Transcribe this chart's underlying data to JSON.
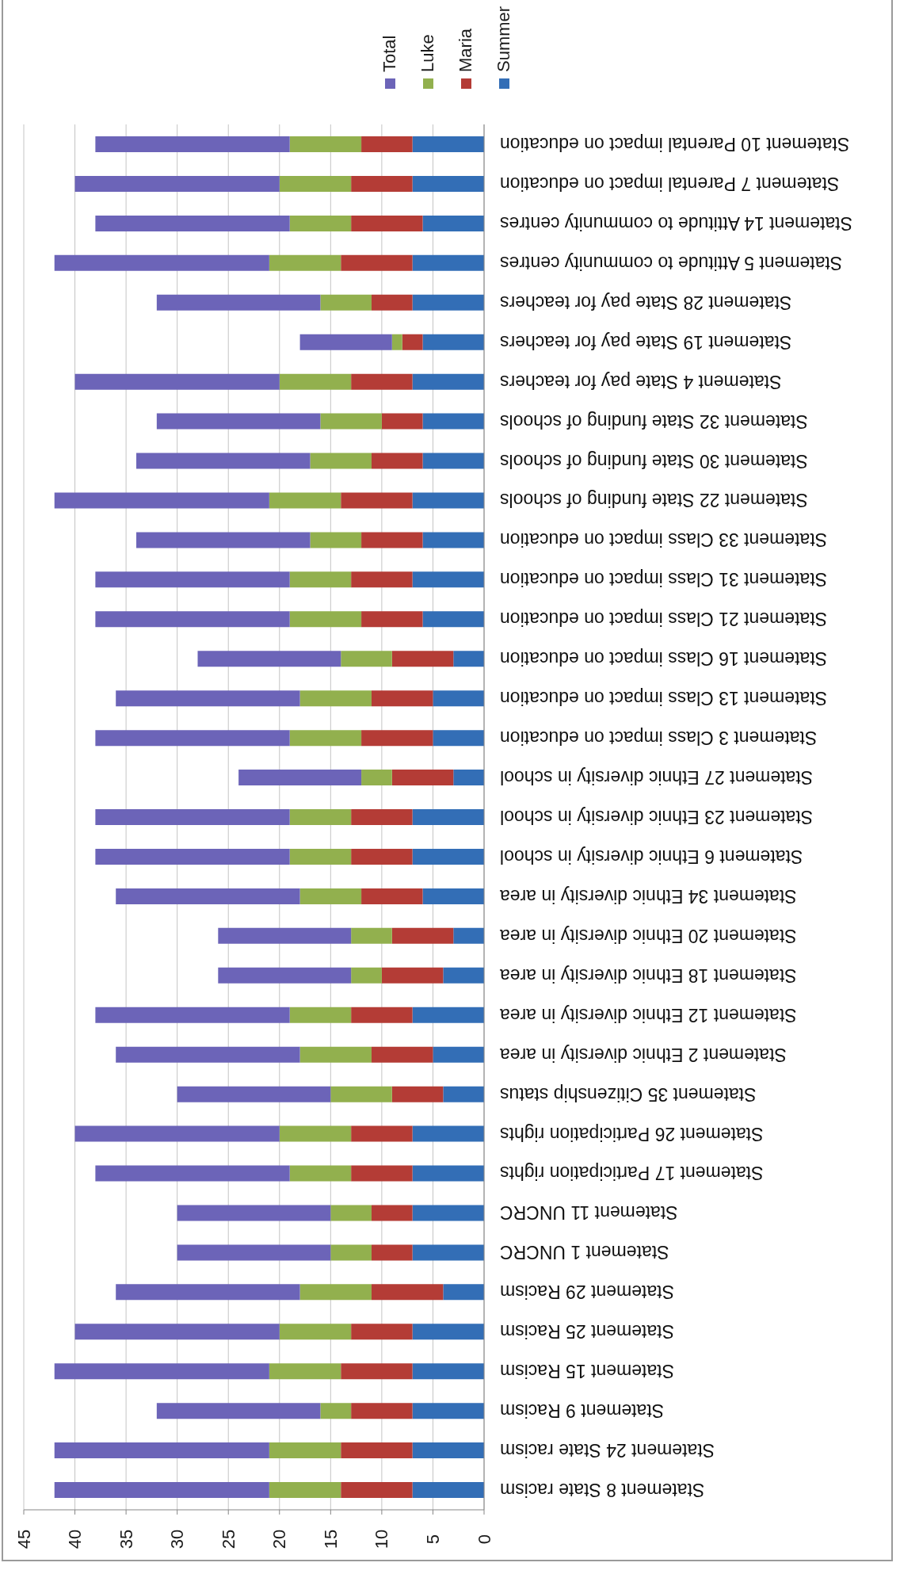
{
  "chart_data": {
    "type": "bar",
    "orientation": "horizontal",
    "stacked": true,
    "categories": [
      "Statement 10 Parental impact on education",
      "Statement 7 Parental impact on education",
      "Statement 14 Attitude to community centres",
      "Statement 5 Attitude to community centres",
      "Statement 28 State pay for teachers",
      "Statement 19 State pay for teachers",
      "Statement 4 State pay for teachers",
      "Statement 32 State funding of schools",
      "Statement 30 State funding of schools",
      "Statement 22 State funding of schools",
      "Statement 33 Class impact on education",
      "Statement 31 Class impact on education",
      "Statement 21 Class impact on education",
      "Statement 16 Class impact on education",
      "Statement 13 Class impact on education",
      "Statement 3 Class impact on education",
      "Statement 27 Ethnic diversity in school",
      "Statement 23 Ethnic diversity in school",
      "Statement 6 Ethnic diversity in school",
      "Statement 34 Ethnic diversity in area",
      "Statement 20 Ethnic diversity in area",
      "Statement 18 Ethnic diversity in area",
      "Statement 12 Ethnic diversity in area",
      "Statement 2 Ethnic diversity in area",
      "Statement 35 Citizenship status",
      "Statement 26 Participation rights",
      "Statement 17 Participation rights",
      "Statement 11 UNCRC",
      "Statement 1 UNCRC",
      "Statement 29 Racism",
      "Statement 25 Racism",
      "Statement 15 Racism",
      "Statement 9 Racism",
      "Statement 24 State racism",
      "Statement 8 State racism"
    ],
    "series": [
      {
        "name": "Summer",
        "color": "#336eb6",
        "values": [
          7,
          7,
          6,
          7,
          7,
          6,
          7,
          6,
          6,
          7,
          6,
          7,
          6,
          3,
          5,
          5,
          3,
          7,
          7,
          6,
          3,
          4,
          7,
          5,
          4,
          7,
          7,
          7,
          7,
          4,
          7,
          7,
          7,
          7,
          7
        ]
      },
      {
        "name": "Maria",
        "color": "#b43c36",
        "values": [
          5,
          6,
          7,
          7,
          4,
          2,
          6,
          4,
          5,
          7,
          6,
          6,
          6,
          6,
          6,
          7,
          6,
          6,
          6,
          6,
          6,
          6,
          6,
          6,
          5,
          6,
          6,
          4,
          4,
          7,
          6,
          7,
          6,
          7,
          7
        ]
      },
      {
        "name": "Luke",
        "color": "#92b04e",
        "values": [
          7,
          7,
          6,
          7,
          5,
          1,
          7,
          6,
          6,
          7,
          5,
          6,
          7,
          5,
          7,
          7,
          3,
          6,
          6,
          6,
          4,
          3,
          6,
          7,
          6,
          7,
          6,
          4,
          4,
          7,
          7,
          7,
          3,
          7,
          7
        ]
      },
      {
        "name": "Total",
        "color": "#6c64b8",
        "values": [
          19,
          20,
          19,
          21,
          16,
          9,
          20,
          16,
          17,
          21,
          17,
          19,
          19,
          14,
          18,
          19,
          12,
          19,
          19,
          18,
          13,
          13,
          19,
          18,
          15,
          20,
          19,
          15,
          15,
          18,
          20,
          21,
          16,
          21,
          21
        ]
      }
    ],
    "xlim": [
      45,
      0
    ],
    "xticks": [
      45,
      40,
      35,
      30,
      25,
      20,
      15,
      10,
      5,
      0
    ],
    "grid": "x",
    "legend": "top right"
  }
}
